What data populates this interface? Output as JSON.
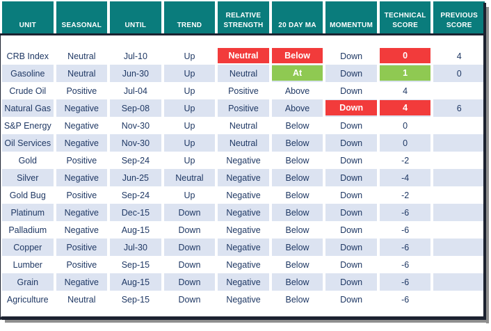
{
  "colors": {
    "header_bg": "#0A7C7C",
    "header_text": "#FFFFFF",
    "row_alt": "#DCE3F1",
    "text": "#1F3864",
    "highlight_red": "#F23B3B",
    "highlight_green": "#8FC952",
    "border_dark": "#1C2230",
    "shadow": "#8F8F8F"
  },
  "chart_data": {
    "type": "table",
    "columns": [
      "UNIT",
      "SEASONAL",
      "UNTIL",
      "TREND",
      "RELATIVE STRENGTH",
      "20 DAY MA",
      "MOMENTUM",
      "TECHNICAL SCORE",
      "PREVIOUS SCORE"
    ],
    "rows": [
      {
        "cells": [
          "CRB Index",
          "Neutral",
          "Jul-10",
          "Up",
          {
            "text": "Neutral",
            "highlight": "red"
          },
          {
            "text": "Below",
            "highlight": "red"
          },
          "Down",
          {
            "text": "0",
            "highlight": "red"
          },
          "4"
        ]
      },
      {
        "cells": [
          "Gasoline",
          "Neutral",
          "Jun-30",
          "Up",
          "Neutral",
          {
            "text": "At",
            "highlight": "green"
          },
          "Down",
          {
            "text": "1",
            "highlight": "green"
          },
          "0"
        ]
      },
      {
        "cells": [
          "Crude Oil",
          "Positive",
          "Jul-04",
          "Up",
          "Positive",
          "Above",
          "Down",
          "4",
          ""
        ]
      },
      {
        "cells": [
          "Natural Gas",
          "Negative",
          "Sep-08",
          "Up",
          "Positive",
          "Above",
          {
            "text": "Down",
            "highlight": "red"
          },
          {
            "text": "4",
            "highlight": "red"
          },
          "6"
        ]
      },
      {
        "cells": [
          "S&P Energy",
          "Negative",
          "Nov-30",
          "Up",
          "Neutral",
          "Below",
          "Down",
          "0",
          ""
        ]
      },
      {
        "cells": [
          "Oil Services",
          "Negative",
          "Nov-30",
          "Up",
          "Neutral",
          "Below",
          "Down",
          "0",
          ""
        ]
      },
      {
        "cells": [
          "Gold",
          "Positive",
          "Sep-24",
          "Up",
          "Negative",
          "Below",
          "Down",
          "-2",
          ""
        ]
      },
      {
        "cells": [
          "Silver",
          "Negative",
          "Jun-25",
          "Neutral",
          "Negative",
          "Below",
          "Down",
          "-4",
          ""
        ]
      },
      {
        "cells": [
          "Gold Bug",
          "Positive",
          "Sep-24",
          "Up",
          "Negative",
          "Below",
          "Down",
          "-2",
          ""
        ]
      },
      {
        "cells": [
          "Platinum",
          "Negative",
          "Dec-15",
          "Down",
          "Negative",
          "Below",
          "Down",
          "-6",
          ""
        ]
      },
      {
        "cells": [
          "Palladium",
          "Negative",
          "Aug-15",
          "Down",
          "Negative",
          "Below",
          "Down",
          "-6",
          ""
        ]
      },
      {
        "cells": [
          "Copper",
          "Positive",
          "Jul-30",
          "Down",
          "Negative",
          "Below",
          "Down",
          "-6",
          ""
        ]
      },
      {
        "cells": [
          "Lumber",
          "Positive",
          "Sep-15",
          "Down",
          "Negative",
          "Below",
          "Down",
          "-6",
          ""
        ]
      },
      {
        "cells": [
          "Grain",
          "Negative",
          "Aug-15",
          "Down",
          "Negative",
          "Below",
          "Down",
          "-6",
          ""
        ]
      },
      {
        "cells": [
          "Agriculture",
          "Neutral",
          "Sep-15",
          "Down",
          "Negative",
          "Below",
          "Down",
          "-6",
          ""
        ]
      }
    ]
  }
}
